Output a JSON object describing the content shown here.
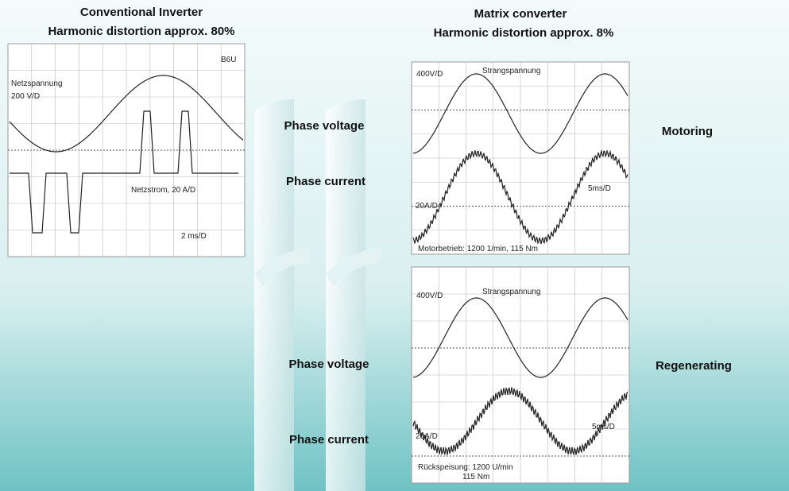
{
  "left_panel": {
    "title": "Conventional Inverter",
    "subtitle": "Harmonic distortion approx. 80%",
    "scope": {
      "tag": "B6U",
      "voltage_label": "Netzspannung",
      "voltage_scale": "200 V/D",
      "current_label": "Netzstrom, 20 A/D",
      "time_scale": "2 ms/D"
    }
  },
  "right_panel": {
    "title": "Matrix converter",
    "subtitle": "Harmonic distortion approx. 8%",
    "scopes": [
      {
        "voltage_scale": "400V/D",
        "voltage_label": "Strangspannung",
        "time_scale": "5ms/D",
        "current_scale": "20A/D",
        "caption": "Motorbetrieb: 1200 1/min, 115 Nm"
      },
      {
        "voltage_scale": "400V/D",
        "voltage_label": "Strangspannung",
        "time_scale": "5ms/D",
        "current_scale": "20A/D",
        "caption": "Rückspeisung: 1200 U/min",
        "caption2": "115 Nm"
      }
    ]
  },
  "labels": {
    "phase_voltage_1": "Phase voltage",
    "phase_current_1": "Phase current",
    "motoring": "Motoring",
    "phase_voltage_2": "Phase voltage",
    "phase_current_2": "Phase current",
    "regenerating": "Regenerating"
  }
}
